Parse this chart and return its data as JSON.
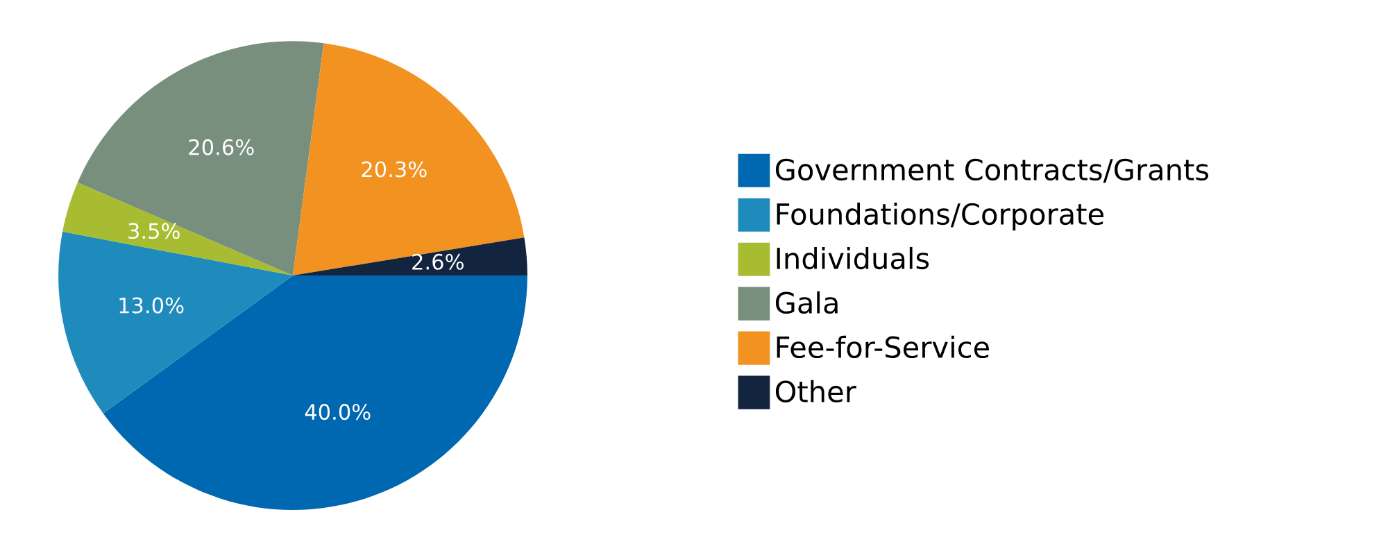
{
  "chart_data": {
    "type": "pie",
    "categories": [
      "Government Contracts/Grants",
      "Foundations/Corporate",
      "Individuals",
      "Gala",
      "Fee-for-Service",
      "Other"
    ],
    "values": [
      40.0,
      13.0,
      3.5,
      20.6,
      20.3,
      2.6
    ],
    "colors": [
      "#0068b0",
      "#1f8bbd",
      "#a8bc32",
      "#788f7e",
      "#f29220",
      "#13243f"
    ],
    "value_labels": [
      "40.0%",
      "13.0%",
      "3.5%",
      "20.6%",
      "20.3%",
      "2.6%"
    ],
    "legend": "right"
  }
}
